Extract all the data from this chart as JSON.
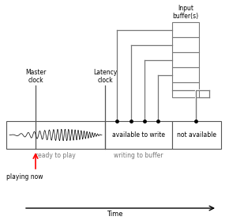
{
  "bg_color": "#ffffff",
  "text_color": "#000000",
  "gray_color": "#777777",
  "line_color": "#555555",
  "master_clock_label": "Master\nclock",
  "latency_clock_label": "Latency\nclock",
  "ready_to_play_label": "ready to play",
  "writing_to_buffer_label": "writing to buffer",
  "available_to_write_label": "available to write",
  "not_available_label": "not available",
  "playing_now_label": "playing now",
  "time_label": "Time",
  "buffer_label": "Input\nbuffer(s)"
}
